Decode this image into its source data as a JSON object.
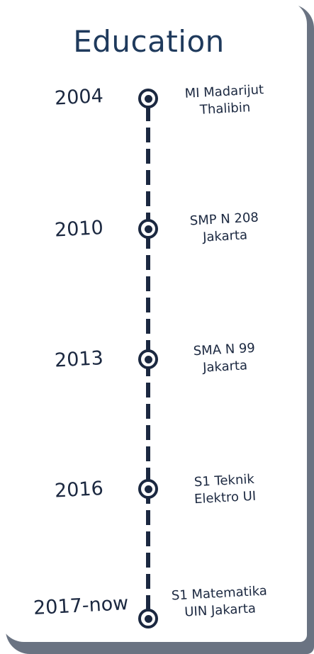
{
  "title": "Education",
  "timeline": [
    {
      "year": "2004",
      "school_line1": "MI Madarijut",
      "school_line2": "Thalibin"
    },
    {
      "year": "2010",
      "school_line1": "SMP N 208",
      "school_line2": "Jakarta"
    },
    {
      "year": "2013",
      "school_line1": "SMA N 99",
      "school_line2": "Jakarta"
    },
    {
      "year": "2016",
      "school_line1": "S1 Teknik",
      "school_line2": "Elektro UI"
    },
    {
      "year": "2017-now",
      "school_line1": "S1 Matematika",
      "school_line2": "UIN Jakarta"
    }
  ],
  "colors": {
    "title": "#1f3a5c",
    "line": "#1b2840",
    "shadow": "#6a7382"
  }
}
